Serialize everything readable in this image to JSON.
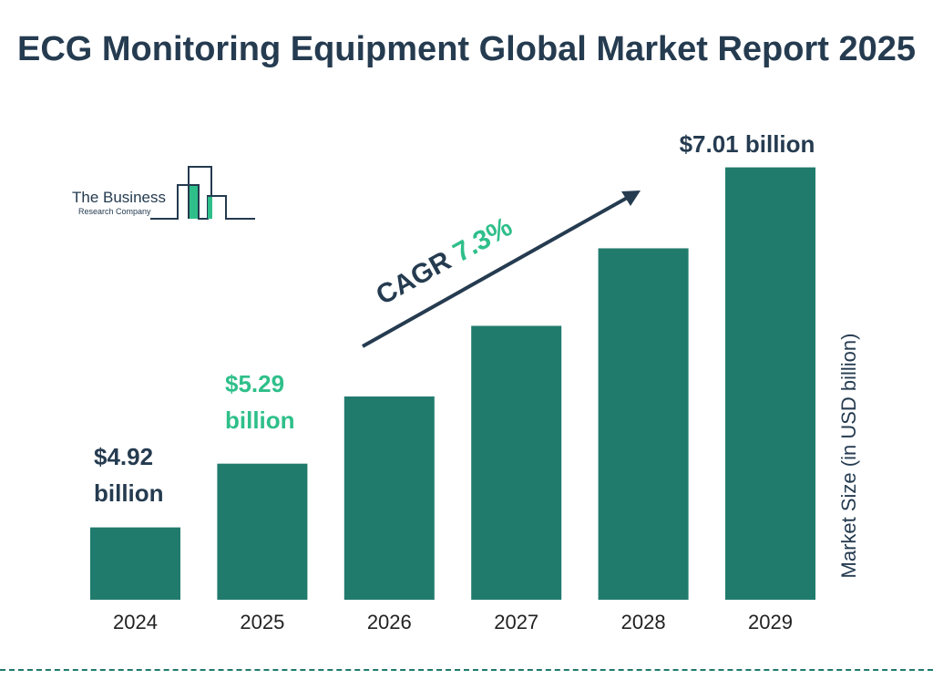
{
  "title": "ECG Monitoring Equipment Global Market Report 2025",
  "logo": {
    "line1": "The Business",
    "line2": "Research Company"
  },
  "colors": {
    "bar": "#217b6d",
    "accent": "#2fbf8a",
    "text": "#253b50"
  },
  "chart_data": {
    "type": "bar",
    "title": "ECG Monitoring Equipment Global Market Report 2025",
    "categories": [
      "2024",
      "2025",
      "2026",
      "2027",
      "2028",
      "2029"
    ],
    "values": [
      4.92,
      5.29,
      5.68,
      6.09,
      6.54,
      7.01
    ],
    "ylabel": "Market Size (in USD billion)",
    "xlabel": "",
    "data_labels": {
      "2024": "$4.92 billion",
      "2025": "$5.29 billion",
      "2029": "$7.01 billion"
    },
    "annotation": {
      "prefix": "CAGR ",
      "value": "7.3%"
    },
    "grid": false
  }
}
